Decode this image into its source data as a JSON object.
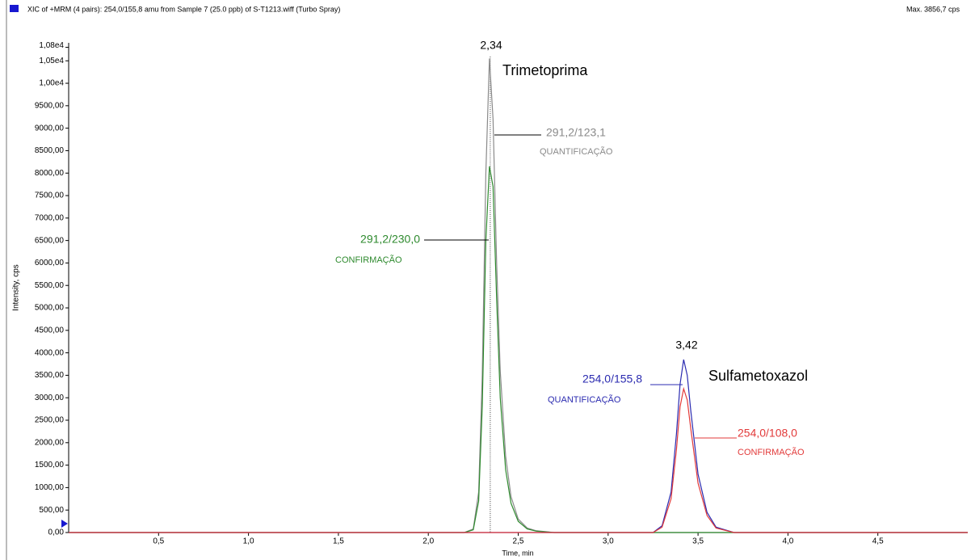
{
  "chart_data": {
    "type": "line",
    "title": "XIC of +MRM (4 pairs): 254,0/155,8 amu from Sample 7 (25.0 ppb) of S-T1213.wiff (Turbo Spray)",
    "subtitle": "Max. 3856,7 cps",
    "x_label": "Time, min",
    "y_label": "Intensity, cps",
    "x": [
      0,
      0.5,
      1.0,
      1.5,
      2.0,
      2.2,
      2.25,
      2.28,
      2.3,
      2.32,
      2.34,
      2.36,
      2.38,
      2.4,
      2.43,
      2.46,
      2.5,
      2.55,
      2.6,
      2.7,
      3.0,
      3.25,
      3.3,
      3.35,
      3.38,
      3.4,
      3.42,
      3.44,
      3.46,
      3.5,
      3.55,
      3.6,
      3.7,
      4.0,
      4.5,
      5.0
    ],
    "series": [
      {
        "name": "291,2/123,1",
        "color": "#8a8a8a",
        "values": [
          0,
          0,
          0,
          0,
          0,
          0,
          80,
          900,
          3500,
          8000,
          10550,
          9200,
          6000,
          3600,
          1700,
          800,
          300,
          100,
          40,
          0,
          0,
          0,
          0,
          0,
          0,
          0,
          0,
          0,
          0,
          0,
          0,
          0,
          0,
          0,
          0,
          0
        ]
      },
      {
        "name": "291,2/230,0",
        "color": "#2e8a2e",
        "values": [
          0,
          0,
          0,
          0,
          0,
          0,
          60,
          700,
          2800,
          6500,
          8150,
          7700,
          5200,
          3000,
          1400,
          650,
          250,
          80,
          30,
          0,
          0,
          0,
          0,
          0,
          0,
          0,
          0,
          0,
          0,
          0,
          0,
          0,
          0,
          0,
          0,
          0
        ]
      },
      {
        "name": "254,0/155,8",
        "color": "#2b2bb0",
        "values": [
          0,
          0,
          0,
          0,
          0,
          0,
          0,
          0,
          0,
          0,
          0,
          0,
          0,
          0,
          0,
          0,
          0,
          0,
          0,
          0,
          0,
          0,
          150,
          900,
          2200,
          3300,
          3850,
          3500,
          2700,
          1300,
          450,
          120,
          0,
          0,
          0,
          0
        ]
      },
      {
        "name": "254,0/108,0",
        "color": "#e23a3a",
        "values": [
          0,
          0,
          0,
          0,
          0,
          0,
          0,
          0,
          0,
          0,
          0,
          0,
          0,
          0,
          0,
          0,
          0,
          0,
          0,
          0,
          0,
          0,
          120,
          750,
          1850,
          2800,
          3200,
          2950,
          2300,
          1100,
          380,
          100,
          0,
          0,
          0,
          0
        ]
      }
    ],
    "annotations": [
      "2,34",
      "Trimetoprima",
      "QUANTIFICAÇÃO",
      "CONFIRMAÇÃO",
      "3,42",
      "Sulfametoxazol",
      "QUANTIFICAÇÃO",
      "CONFIRMAÇÃO"
    ],
    "xlim": [
      0,
      5
    ],
    "ylim": [
      0,
      10900
    ],
    "xticks": [
      {
        "value": 0.5,
        "label": "0,5"
      },
      {
        "value": 1.0,
        "label": "1,0"
      },
      {
        "value": 1.5,
        "label": "1,5"
      },
      {
        "value": 2.0,
        "label": "2,0"
      },
      {
        "value": 2.5,
        "label": "2,5"
      },
      {
        "value": 3.0,
        "label": "3,0"
      },
      {
        "value": 3.5,
        "label": "3,5"
      },
      {
        "value": 4.0,
        "label": "4,0"
      },
      {
        "value": 4.5,
        "label": "4,5"
      }
    ],
    "yticks": [
      {
        "value": 0,
        "label": "0,00"
      },
      {
        "value": 500,
        "label": "500,00"
      },
      {
        "value": 1000,
        "label": "1000,00"
      },
      {
        "value": 1500,
        "label": "1500,00"
      },
      {
        "value": 2000,
        "label": "2000,00"
      },
      {
        "value": 2500,
        "label": "2500,00"
      },
      {
        "value": 3000,
        "label": "3000,00"
      },
      {
        "value": 3500,
        "label": "3500,00"
      },
      {
        "value": 4000,
        "label": "4000,00"
      },
      {
        "value": 4500,
        "label": "4500,00"
      },
      {
        "value": 5000,
        "label": "5000,00"
      },
      {
        "value": 5500,
        "label": "5500,00"
      },
      {
        "value": 6000,
        "label": "6000,00"
      },
      {
        "value": 6500,
        "label": "6500,00"
      },
      {
        "value": 7000,
        "label": "7000,00"
      },
      {
        "value": 7500,
        "label": "7500,00"
      },
      {
        "value": 8000,
        "label": "8000,00"
      },
      {
        "value": 8500,
        "label": "8500,00"
      },
      {
        "value": 9000,
        "label": "9000,00"
      },
      {
        "value": 9500,
        "label": "9500,00"
      },
      {
        "value": 10000,
        "label": "1,00e4"
      },
      {
        "value": 10500,
        "label": "1,05e4"
      },
      {
        "value": 10800,
        "label": "1,08e4"
      }
    ],
    "grid": false
  }
}
